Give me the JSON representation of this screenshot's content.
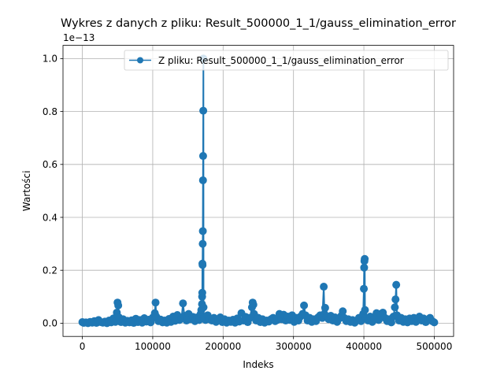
{
  "chart_data": {
    "type": "line",
    "title": "Wykres z danych z pliku: Result_500000_1_1/gauss_elimination_error",
    "xlabel": "Indeks",
    "ylabel": "Wartości",
    "y_offset_label": "1e−13",
    "xlim": [
      -27500,
      527500
    ],
    "ylim": [
      -0.05,
      1.05
    ],
    "x_ticks": [
      0,
      100000,
      200000,
      300000,
      400000,
      500000
    ],
    "x_tick_labels": [
      "0",
      "100000",
      "200000",
      "300000",
      "400000",
      "500000"
    ],
    "y_ticks": [
      0.0,
      0.2,
      0.4,
      0.6,
      0.8,
      1.0
    ],
    "y_tick_labels": [
      "0.0",
      "0.2",
      "0.4",
      "0.6",
      "0.8",
      "1.0"
    ],
    "grid": true,
    "legend_position": "top-right",
    "series": [
      {
        "name": "Z pliku: Result_500000_1_1/gauss_elimination_error",
        "color": "#1f77b4",
        "marker": "circle",
        "points": [
          [
            0,
            0.004
          ],
          [
            2000,
            0.001
          ],
          [
            5000,
            0.003
          ],
          [
            8000,
            0.0
          ],
          [
            11000,
            0.005
          ],
          [
            14000,
            0.002
          ],
          [
            17000,
            0.008
          ],
          [
            20000,
            0.001
          ],
          [
            23000,
            0.012
          ],
          [
            26000,
            0.004
          ],
          [
            29000,
            0.002
          ],
          [
            32000,
            0.006
          ],
          [
            35000,
            0.0
          ],
          [
            38000,
            0.01
          ],
          [
            41000,
            0.003
          ],
          [
            44000,
            0.018
          ],
          [
            47000,
            0.005
          ],
          [
            49000,
            0.04
          ],
          [
            50000,
            0.078
          ],
          [
            51000,
            0.067
          ],
          [
            52000,
            0.022
          ],
          [
            55000,
            0.004
          ],
          [
            58000,
            0.015
          ],
          [
            61000,
            0.002
          ],
          [
            64000,
            0.009
          ],
          [
            67000,
            0.003
          ],
          [
            70000,
            0.011
          ],
          [
            73000,
            0.001
          ],
          [
            76000,
            0.017
          ],
          [
            79000,
            0.004
          ],
          [
            82000,
            0.012
          ],
          [
            85000,
            0.002
          ],
          [
            88000,
            0.019
          ],
          [
            91000,
            0.006
          ],
          [
            94000,
            0.013
          ],
          [
            97000,
            0.003
          ],
          [
            100000,
            0.021
          ],
          [
            103000,
            0.038
          ],
          [
            104000,
            0.078
          ],
          [
            105000,
            0.025
          ],
          [
            108000,
            0.008
          ],
          [
            111000,
            0.014
          ],
          [
            114000,
            0.003
          ],
          [
            117000,
            0.01
          ],
          [
            120000,
            0.002
          ],
          [
            123000,
            0.016
          ],
          [
            126000,
            0.005
          ],
          [
            129000,
            0.025
          ],
          [
            132000,
            0.009
          ],
          [
            135000,
            0.031
          ],
          [
            138000,
            0.012
          ],
          [
            141000,
            0.02
          ],
          [
            143000,
            0.075
          ],
          [
            145000,
            0.028
          ],
          [
            148000,
            0.01
          ],
          [
            151000,
            0.035
          ],
          [
            154000,
            0.015
          ],
          [
            157000,
            0.024
          ],
          [
            160000,
            0.008
          ],
          [
            163000,
            0.022
          ],
          [
            166000,
            0.012
          ],
          [
            168000,
            0.035
          ],
          [
            169000,
            0.05
          ],
          [
            170000,
            0.072
          ],
          [
            170200,
            0.1
          ],
          [
            170400,
            0.115
          ],
          [
            170600,
            0.225
          ],
          [
            170800,
            0.22
          ],
          [
            171000,
            0.3
          ],
          [
            171200,
            0.348
          ],
          [
            171400,
            0.54
          ],
          [
            171600,
            0.632
          ],
          [
            171800,
            0.803
          ],
          [
            172000,
            1.0
          ],
          [
            172200,
            0.06
          ],
          [
            172800,
            0.02
          ],
          [
            175000,
            0.012
          ],
          [
            178000,
            0.03
          ],
          [
            181000,
            0.015
          ],
          [
            184000,
            0.01
          ],
          [
            187000,
            0.02
          ],
          [
            190000,
            0.005
          ],
          [
            193000,
            0.012
          ],
          [
            196000,
            0.022
          ],
          [
            199000,
            0.004
          ],
          [
            202000,
            0.015
          ],
          [
            205000,
            0.002
          ],
          [
            208000,
            0.01
          ],
          [
            211000,
            0.005
          ],
          [
            214000,
            0.013
          ],
          [
            217000,
            0.002
          ],
          [
            220000,
            0.018
          ],
          [
            223000,
            0.006
          ],
          [
            226000,
            0.038
          ],
          [
            229000,
            0.01
          ],
          [
            232000,
            0.024
          ],
          [
            235000,
            0.004
          ],
          [
            238000,
            0.02
          ],
          [
            241000,
            0.06
          ],
          [
            242000,
            0.078
          ],
          [
            243000,
            0.07
          ],
          [
            244000,
            0.035
          ],
          [
            247000,
            0.01
          ],
          [
            250000,
            0.02
          ],
          [
            253000,
            0.004
          ],
          [
            256000,
            0.015
          ],
          [
            259000,
            0.002
          ],
          [
            262000,
            0.01
          ],
          [
            265000,
            0.006
          ],
          [
            268000,
            0.015
          ],
          [
            271000,
            0.02
          ],
          [
            274000,
            0.008
          ],
          [
            277000,
            0.012
          ],
          [
            280000,
            0.035
          ],
          [
            283000,
            0.015
          ],
          [
            286000,
            0.032
          ],
          [
            289000,
            0.01
          ],
          [
            292000,
            0.025
          ],
          [
            295000,
            0.012
          ],
          [
            298000,
            0.03
          ],
          [
            301000,
            0.005
          ],
          [
            304000,
            0.02
          ],
          [
            307000,
            0.01
          ],
          [
            310000,
            0.025
          ],
          [
            313000,
            0.035
          ],
          [
            315000,
            0.067
          ],
          [
            317000,
            0.03
          ],
          [
            320000,
            0.01
          ],
          [
            323000,
            0.02
          ],
          [
            326000,
            0.005
          ],
          [
            329000,
            0.015
          ],
          [
            332000,
            0.008
          ],
          [
            335000,
            0.022
          ],
          [
            338000,
            0.03
          ],
          [
            341000,
            0.02
          ],
          [
            343000,
            0.138
          ],
          [
            344000,
            0.035
          ],
          [
            345000,
            0.058
          ],
          [
            347000,
            0.025
          ],
          [
            350000,
            0.015
          ],
          [
            353000,
            0.028
          ],
          [
            356000,
            0.01
          ],
          [
            359000,
            0.022
          ],
          [
            362000,
            0.005
          ],
          [
            365000,
            0.018
          ],
          [
            368000,
            0.028
          ],
          [
            370000,
            0.045
          ],
          [
            372000,
            0.02
          ],
          [
            375000,
            0.008
          ],
          [
            378000,
            0.015
          ],
          [
            381000,
            0.005
          ],
          [
            384000,
            0.012
          ],
          [
            387000,
            0.002
          ],
          [
            390000,
            0.01
          ],
          [
            393000,
            0.02
          ],
          [
            396000,
            0.008
          ],
          [
            399000,
            0.035
          ],
          [
            400000,
            0.13
          ],
          [
            400400,
            0.21
          ],
          [
            400800,
            0.235
          ],
          [
            401200,
            0.243
          ],
          [
            401600,
            0.05
          ],
          [
            403000,
            0.02
          ],
          [
            406000,
            0.01
          ],
          [
            409000,
            0.025
          ],
          [
            412000,
            0.005
          ],
          [
            415000,
            0.018
          ],
          [
            418000,
            0.038
          ],
          [
            421000,
            0.012
          ],
          [
            424000,
            0.035
          ],
          [
            427000,
            0.04
          ],
          [
            430000,
            0.02
          ],
          [
            433000,
            0.008
          ],
          [
            436000,
            0.015
          ],
          [
            439000,
            0.003
          ],
          [
            442000,
            0.025
          ],
          [
            444000,
            0.06
          ],
          [
            445000,
            0.09
          ],
          [
            446000,
            0.145
          ],
          [
            447000,
            0.03
          ],
          [
            450000,
            0.01
          ],
          [
            453000,
            0.02
          ],
          [
            456000,
            0.005
          ],
          [
            459000,
            0.015
          ],
          [
            462000,
            0.003
          ],
          [
            465000,
            0.018
          ],
          [
            468000,
            0.008
          ],
          [
            471000,
            0.02
          ],
          [
            474000,
            0.005
          ],
          [
            477000,
            0.012
          ],
          [
            479000,
            0.025
          ],
          [
            482000,
            0.01
          ],
          [
            485000,
            0.018
          ],
          [
            488000,
            0.004
          ],
          [
            491000,
            0.012
          ],
          [
            494000,
            0.02
          ],
          [
            497000,
            0.008
          ],
          [
            500000,
            0.003
          ]
        ]
      }
    ]
  }
}
